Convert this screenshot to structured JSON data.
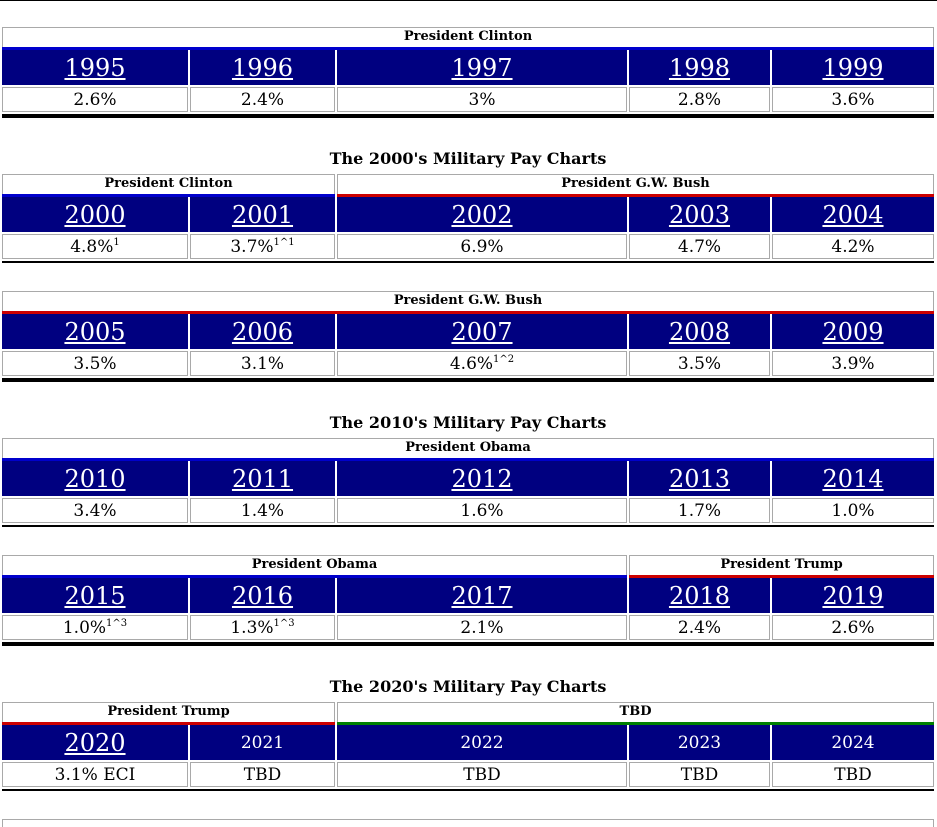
{
  "sections": [
    {
      "title": "",
      "presidents": [
        {
          "name": "President Clinton",
          "span": [
            0,
            5
          ],
          "color": "#0000cc"
        }
      ],
      "years": [
        {
          "label": "1995",
          "link": true
        },
        {
          "label": "1996",
          "link": true
        },
        {
          "label": "1997",
          "link": true
        },
        {
          "label": "1998",
          "link": true
        },
        {
          "label": "1999",
          "link": true
        }
      ],
      "values": [
        {
          "text": "2.6%",
          "sup": ""
        },
        {
          "text": "2.4%",
          "sup": ""
        },
        {
          "text": "3%",
          "sup": ""
        },
        {
          "text": "2.8%",
          "sup": ""
        },
        {
          "text": "3.6%",
          "sup": ""
        }
      ],
      "thick_rule": true
    },
    {
      "title": "The 2000's Military Pay Charts",
      "presidents": [
        {
          "name": "President Clinton",
          "span": [
            0,
            2
          ],
          "color": "#0000cc"
        },
        {
          "name": "President G.W. Bush",
          "span": [
            2,
            5
          ],
          "color": "#cc0000"
        }
      ],
      "years": [
        {
          "label": "2000",
          "link": true
        },
        {
          "label": "2001",
          "link": true
        },
        {
          "label": "2002",
          "link": true
        },
        {
          "label": "2003",
          "link": true
        },
        {
          "label": "2004",
          "link": true
        }
      ],
      "values": [
        {
          "text": "4.8%",
          "sup": "1"
        },
        {
          "text": "3.7%",
          "sup": "1^1"
        },
        {
          "text": "6.9%",
          "sup": ""
        },
        {
          "text": "4.7%",
          "sup": ""
        },
        {
          "text": "4.2%",
          "sup": ""
        }
      ],
      "thick_rule": false
    },
    {
      "title": "",
      "presidents": [
        {
          "name": "President G.W. Bush",
          "span": [
            0,
            5
          ],
          "color": "#cc0000"
        }
      ],
      "years": [
        {
          "label": "2005",
          "link": true
        },
        {
          "label": "2006",
          "link": true
        },
        {
          "label": "2007",
          "link": true
        },
        {
          "label": "2008",
          "link": true
        },
        {
          "label": "2009",
          "link": true
        }
      ],
      "values": [
        {
          "text": "3.5%",
          "sup": ""
        },
        {
          "text": "3.1%",
          "sup": ""
        },
        {
          "text": "4.6%",
          "sup": "1^2"
        },
        {
          "text": "3.5%",
          "sup": ""
        },
        {
          "text": "3.9%",
          "sup": ""
        }
      ],
      "thick_rule": true
    },
    {
      "title": "The 2010's Military Pay Charts",
      "presidents": [
        {
          "name": "President Obama",
          "span": [
            0,
            5
          ],
          "color": "#0000cc"
        }
      ],
      "years": [
        {
          "label": "2010",
          "link": true
        },
        {
          "label": "2011",
          "link": true
        },
        {
          "label": "2012",
          "link": true
        },
        {
          "label": "2013",
          "link": true
        },
        {
          "label": "2014",
          "link": true
        }
      ],
      "values": [
        {
          "text": "3.4%",
          "sup": ""
        },
        {
          "text": "1.4%",
          "sup": ""
        },
        {
          "text": "1.6%",
          "sup": ""
        },
        {
          "text": "1.7%",
          "sup": ""
        },
        {
          "text": "1.0%",
          "sup": ""
        }
      ],
      "thick_rule": false
    },
    {
      "title": "",
      "presidents": [
        {
          "name": "President Obama",
          "span": [
            0,
            3
          ],
          "color": "#0000cc"
        },
        {
          "name": "President Trump",
          "span": [
            3,
            5
          ],
          "color": "#cc0000"
        }
      ],
      "years": [
        {
          "label": "2015",
          "link": true
        },
        {
          "label": "2016",
          "link": true
        },
        {
          "label": "2017",
          "link": true
        },
        {
          "label": "2018",
          "link": true
        },
        {
          "label": "2019",
          "link": true
        }
      ],
      "values": [
        {
          "text": "1.0%",
          "sup": "1^3"
        },
        {
          "text": "1.3%",
          "sup": "1^3"
        },
        {
          "text": "2.1%",
          "sup": ""
        },
        {
          "text": "2.4%",
          "sup": ""
        },
        {
          "text": "2.6%",
          "sup": ""
        }
      ],
      "thick_rule": true
    },
    {
      "title": "The 2020's Military Pay Charts",
      "presidents": [
        {
          "name": "President Trump",
          "span": [
            0,
            2
          ],
          "color": "#cc0000"
        },
        {
          "name": "TBD",
          "span": [
            2,
            5
          ],
          "color": "#008000"
        }
      ],
      "years": [
        {
          "label": "2020",
          "link": true
        },
        {
          "label": "2021",
          "link": false
        },
        {
          "label": "2022",
          "link": false
        },
        {
          "label": "2023",
          "link": false
        },
        {
          "label": "2024",
          "link": false
        }
      ],
      "values": [
        {
          "text": "3.1% ECI",
          "sup": ""
        },
        {
          "text": "TBD",
          "sup": ""
        },
        {
          "text": "TBD",
          "sup": ""
        },
        {
          "text": "TBD",
          "sup": ""
        },
        {
          "text": "TBD",
          "sup": ""
        }
      ],
      "thick_rule": false
    }
  ]
}
